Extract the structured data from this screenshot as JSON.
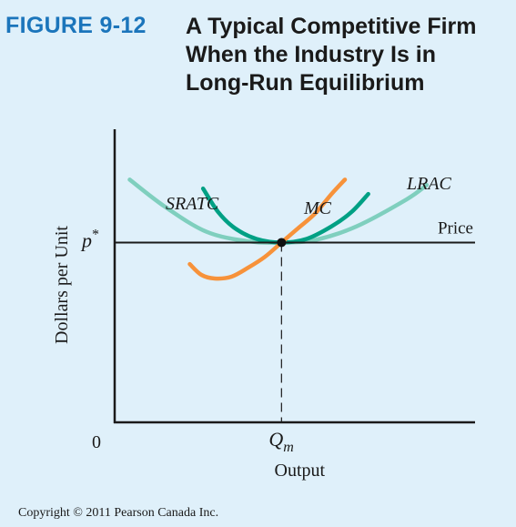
{
  "figure": {
    "label": "FIGURE 9-12",
    "title_lines": [
      "A Typical Competitive Firm",
      "When the Industry Is in",
      "Long-Run Equilibrium"
    ]
  },
  "copyright": "Copyright © 2011 Pearson Canada Inc.",
  "chart_data": {
    "type": "line",
    "title": "A Typical Competitive Firm When the Industry Is in Long-Run Equilibrium",
    "xlabel": "Output",
    "ylabel": "Dollars per Unit",
    "x_ticks": [
      {
        "label": "0",
        "x": 0
      },
      {
        "label": "Q",
        "sub": "m",
        "x": 1
      }
    ],
    "y_ticks": [
      {
        "label": "p*",
        "y": 1
      }
    ],
    "xlim": [
      0,
      2.16
    ],
    "ylim": [
      0,
      1.63
    ],
    "price_line": {
      "name": "Price",
      "y": 1
    },
    "equilibrium_point": {
      "x": 1,
      "y": 1
    },
    "series": [
      {
        "name": "LRAC",
        "color": "#7fcfbe",
        "points": [
          [
            0.09,
            1.35
          ],
          [
            0.3,
            1.2
          ],
          [
            0.55,
            1.06
          ],
          [
            0.8,
            1.007
          ],
          [
            1.0,
            1.0
          ],
          [
            1.2,
            1.014
          ],
          [
            1.45,
            1.09
          ],
          [
            1.75,
            1.24
          ],
          [
            1.87,
            1.32
          ]
        ]
      },
      {
        "name": "SRATC",
        "color": "#00a084",
        "points": [
          [
            0.53,
            1.3
          ],
          [
            0.62,
            1.17
          ],
          [
            0.72,
            1.08
          ],
          [
            0.85,
            1.02
          ],
          [
            1.0,
            1.0
          ],
          [
            1.15,
            1.02
          ],
          [
            1.3,
            1.09
          ],
          [
            1.42,
            1.17
          ],
          [
            1.52,
            1.27
          ]
        ]
      },
      {
        "name": "MC",
        "color": "#f7923a",
        "points": [
          [
            0.45,
            0.88
          ],
          [
            0.52,
            0.82
          ],
          [
            0.6,
            0.8
          ],
          [
            0.7,
            0.81
          ],
          [
            0.8,
            0.86
          ],
          [
            0.9,
            0.92
          ],
          [
            1.0,
            1.0
          ],
          [
            1.1,
            1.08
          ],
          [
            1.2,
            1.16
          ],
          [
            1.3,
            1.27
          ],
          [
            1.38,
            1.35
          ]
        ]
      }
    ],
    "grid": false
  }
}
